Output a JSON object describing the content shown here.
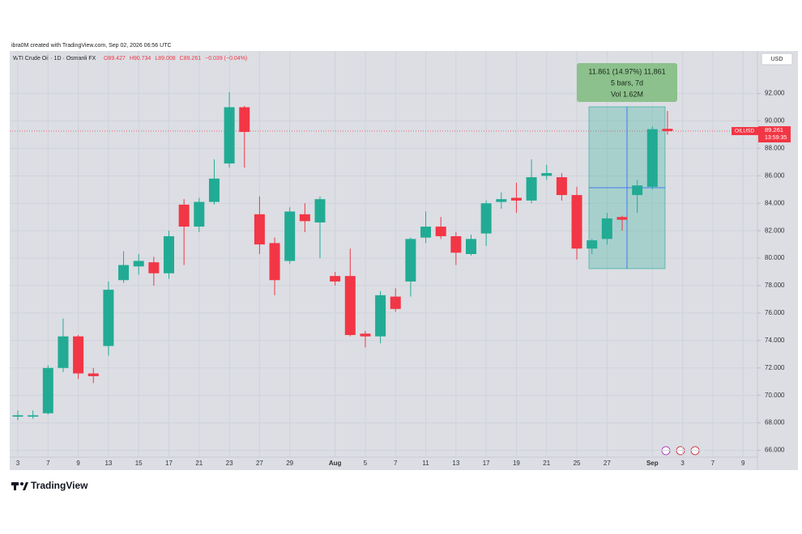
{
  "chart_data": {
    "type": "candlestick",
    "attribution": "ibra0M created with TradingView.com, Sep 02, 2026 06:56 UTC",
    "title": "WTI Crude Oil · 1D · Osmanli FX",
    "ohlc_header": [
      "O89.427",
      "H90.734",
      "L89.008",
      "C89.261",
      "−0.039 (−0.04%)"
    ],
    "currency": "USD",
    "symbol_tag": "OILUSD",
    "last_price": 89.261,
    "countdown": "13:59:35",
    "measure": [
      "11.861 (14.97%) 11,861",
      "5 bars, 7d",
      "Vol 1.62M"
    ],
    "brand": "TradingView",
    "categories": [
      "3",
      null,
      "7",
      null,
      "9",
      null,
      "13",
      null,
      "15",
      null,
      "17",
      null,
      "21",
      null,
      "23",
      null,
      "27",
      null,
      "29",
      null,
      null,
      "Aug",
      null,
      "5",
      null,
      "7",
      null,
      "11",
      null,
      "13",
      null,
      "17",
      null,
      "19",
      null,
      "21",
      null,
      "25",
      null,
      "27",
      null,
      null,
      "Sep",
      null,
      "3",
      null,
      "7",
      null,
      "9"
    ],
    "open": [
      68.45,
      68.45,
      68.7,
      72.0,
      74.3,
      71.6,
      73.6,
      78.4,
      79.4,
      79.7,
      78.9,
      83.9,
      82.3,
      84.1,
      86.9,
      91.0,
      83.2,
      81.1,
      79.8,
      83.2,
      82.6,
      78.7,
      78.7,
      74.5,
      74.3,
      77.2,
      78.3,
      81.5,
      82.3,
      81.6,
      80.3,
      81.8,
      84.1,
      84.4,
      84.2,
      86.0,
      85.9,
      84.6,
      80.7,
      81.4,
      83.0,
      84.6,
      85.2,
      89.427,
      null,
      null,
      null,
      null,
      null
    ],
    "high": [
      68.9,
      68.9,
      72.2,
      75.6,
      74.4,
      72.0,
      78.3,
      80.5,
      80.3,
      80.1,
      82.0,
      84.3,
      84.4,
      87.2,
      92.1,
      91.1,
      84.5,
      81.5,
      83.7,
      84.0,
      84.5,
      79.0,
      80.7,
      74.7,
      77.6,
      77.8,
      81.5,
      83.4,
      83.0,
      81.9,
      81.7,
      84.2,
      84.8,
      85.5,
      87.2,
      86.8,
      86.2,
      85.2,
      81.4,
      83.3,
      83.1,
      85.7,
      89.6,
      90.734,
      null,
      null,
      null,
      null,
      null
    ],
    "low": [
      68.2,
      68.3,
      68.6,
      71.7,
      71.2,
      70.9,
      72.9,
      78.2,
      78.8,
      78.0,
      78.5,
      79.5,
      81.9,
      83.9,
      86.6,
      86.6,
      80.3,
      77.3,
      79.6,
      81.9,
      80.0,
      78.0,
      74.3,
      73.5,
      73.8,
      76.1,
      77.2,
      81.1,
      81.4,
      79.5,
      80.2,
      80.9,
      83.6,
      83.3,
      84.0,
      85.7,
      84.2,
      79.9,
      80.3,
      81.0,
      82.0,
      83.3,
      85.0,
      89.008,
      null,
      null,
      null,
      null,
      null
    ],
    "close": [
      68.55,
      68.55,
      72.0,
      74.3,
      71.6,
      71.4,
      77.7,
      79.5,
      79.8,
      78.9,
      81.6,
      82.3,
      84.1,
      85.8,
      91.0,
      89.2,
      81.0,
      78.4,
      83.4,
      82.7,
      84.3,
      78.3,
      74.4,
      74.3,
      77.3,
      76.3,
      81.4,
      82.3,
      81.6,
      80.4,
      81.4,
      84.0,
      84.3,
      84.2,
      85.9,
      86.2,
      84.6,
      80.7,
      81.3,
      82.9,
      82.8,
      85.3,
      89.4,
      89.261,
      null,
      null,
      null,
      null,
      null
    ],
    "up_color": "#22ab94",
    "down_color": "#f23645",
    "ylim": [
      65.5,
      95.1
    ],
    "yticks": [
      {
        "value": 66,
        "label": "66.000"
      },
      {
        "value": 68,
        "label": "68.000"
      },
      {
        "value": 70,
        "label": "70.000"
      },
      {
        "value": 72,
        "label": "72.000"
      },
      {
        "value": 74,
        "label": "74.000"
      },
      {
        "value": 76,
        "label": "76.000"
      },
      {
        "value": 78,
        "label": "78.000"
      },
      {
        "value": 80,
        "label": "80.000"
      },
      {
        "value": 82,
        "label": "82.000"
      },
      {
        "value": 84,
        "label": "84.000"
      },
      {
        "value": 86,
        "label": "86.000"
      },
      {
        "value": 88,
        "label": "88.000"
      },
      {
        "value": 90,
        "label": "90.000"
      },
      {
        "value": 92,
        "label": "92.000"
      }
    ],
    "grid": true
  }
}
